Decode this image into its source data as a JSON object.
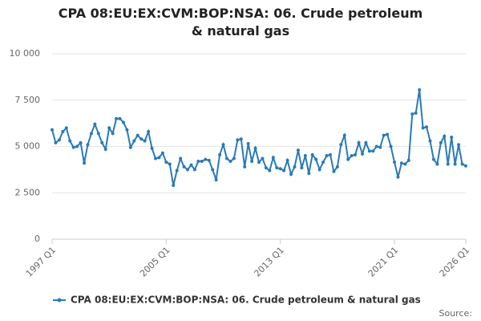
{
  "chart_data": {
    "type": "line",
    "title": "CPA 08:EU:EX:CVM:BOP:NSA: 06. Crude petroleum & natural gas",
    "source": "Source:",
    "categories": [
      "1997 Q1",
      null,
      null,
      null,
      null,
      null,
      null,
      null,
      null,
      null,
      null,
      null,
      null,
      null,
      null,
      null,
      null,
      null,
      null,
      null,
      null,
      null,
      null,
      null,
      null,
      null,
      null,
      null,
      null,
      null,
      null,
      null,
      "2005 Q1",
      null,
      null,
      null,
      null,
      null,
      null,
      null,
      null,
      null,
      null,
      null,
      null,
      null,
      null,
      null,
      null,
      null,
      null,
      null,
      null,
      null,
      null,
      null,
      null,
      null,
      null,
      null,
      null,
      null,
      null,
      null,
      "2013 Q1",
      null,
      null,
      null,
      null,
      null,
      null,
      null,
      null,
      null,
      null,
      null,
      null,
      null,
      null,
      null,
      null,
      null,
      null,
      null,
      null,
      null,
      null,
      null,
      null,
      null,
      null,
      null,
      null,
      null,
      null,
      null,
      "2021 Q1",
      null,
      null,
      null,
      null,
      null,
      null,
      null,
      null,
      null,
      null,
      null,
      null,
      null,
      null,
      null,
      null,
      null,
      null,
      null,
      "2026 Q1"
    ],
    "series": [
      {
        "name": "CPA 08:EU:EX:CVM:BOP:NSA: 06. Crude petroleum & natural gas",
        "color": "#2a7ab8",
        "values": [
          5900,
          5200,
          5350,
          5800,
          6000,
          5300,
          4950,
          5000,
          5200,
          4100,
          5100,
          5700,
          6200,
          5700,
          5200,
          4850,
          6000,
          5700,
          6500,
          6500,
          6300,
          5900,
          4950,
          5300,
          5600,
          5400,
          5300,
          5800,
          4900,
          4350,
          4400,
          4650,
          4150,
          4050,
          2900,
          3700,
          4350,
          3900,
          3750,
          4000,
          3750,
          4200,
          4200,
          4300,
          4250,
          3750,
          3200,
          4550,
          5100,
          4350,
          4200,
          4350,
          5350,
          5400,
          3900,
          5150,
          4200,
          4900,
          4150,
          4350,
          3850,
          3700,
          4400,
          3850,
          3800,
          3700,
          4250,
          3500,
          3900,
          4800,
          3850,
          4500,
          3550,
          4550,
          4300,
          3750,
          4150,
          4500,
          4550,
          3650,
          3900,
          5100,
          5600,
          4300,
          4500,
          4550,
          5200,
          4600,
          5200,
          4750,
          4750,
          5000,
          4950,
          5600,
          5650,
          5000,
          4150,
          3350,
          4100,
          4050,
          4250,
          6750,
          6800,
          8050,
          6000,
          6050,
          5300,
          4300,
          4050,
          5200,
          5550,
          4050,
          5500,
          4050,
          5100,
          4050,
          3950
        ]
      }
    ],
    "ylim": [
      0,
      10000
    ],
    "yticks": [
      0,
      {
        "value": 2500,
        "label": "2 500"
      },
      {
        "value": 5000,
        "label": "5 000"
      },
      {
        "value": 7500,
        "label": "7 500"
      },
      {
        "value": 10000,
        "label": "10 000"
      }
    ],
    "grid": true,
    "legend": "bottom"
  }
}
